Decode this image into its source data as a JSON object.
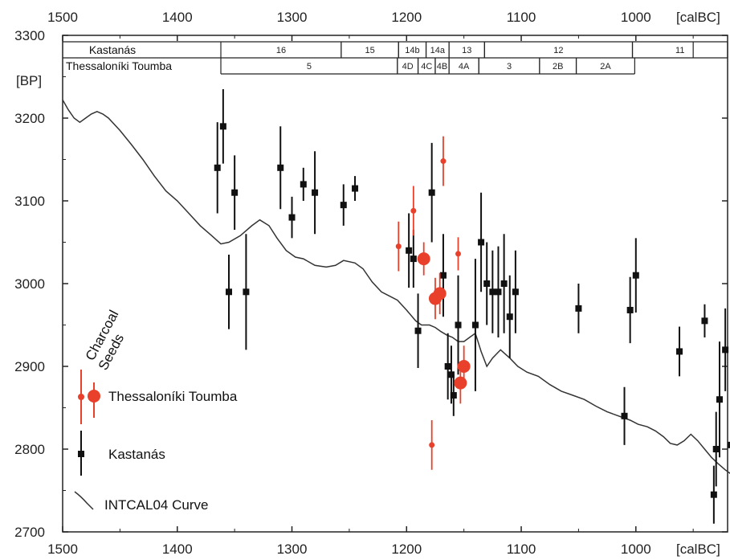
{
  "chart_data": {
    "type": "scatter",
    "x_axis": {
      "range": [
        1500,
        920
      ],
      "ticks": [
        1500,
        1400,
        1300,
        1200,
        1100,
        1000
      ],
      "tick_labels": [
        "1500",
        "1400",
        "1300",
        "1200",
        "1100",
        "1000"
      ],
      "unit_label": "[calBC]"
    },
    "y_axis": {
      "range": [
        2700,
        3300
      ],
      "ticks": [
        2700,
        2800,
        2900,
        3000,
        3100,
        3200,
        3300
      ],
      "tick_labels": [
        "2700",
        "2800",
        "2900",
        "3000",
        "3100",
        "3200",
        "3300"
      ],
      "unit_label": "[BP]"
    },
    "phase_bars": [
      {
        "site": "Kastanás",
        "phases": [
          {
            "label": "16",
            "from": 1362,
            "to": 1257
          },
          {
            "label": "15",
            "from": 1257,
            "to": 1207
          },
          {
            "label": "14b",
            "from": 1207,
            "to": 1183
          },
          {
            "label": "14a",
            "from": 1183,
            "to": 1163
          },
          {
            "label": "13",
            "from": 1163,
            "to": 1132
          },
          {
            "label": "12",
            "from": 1132,
            "to": 1003
          },
          {
            "label": "11",
            "from": 1003,
            "to": 920
          }
        ]
      },
      {
        "site": "Thessaloníki Toumba",
        "phases": [
          {
            "label": "5",
            "from": 1362,
            "to": 1208
          },
          {
            "label": "4D",
            "from": 1208,
            "to": 1190
          },
          {
            "label": "4C",
            "from": 1190,
            "to": 1175
          },
          {
            "label": "4B",
            "from": 1175,
            "to": 1163
          },
          {
            "label": "4A",
            "from": 1163,
            "to": 1137
          },
          {
            "label": "3",
            "from": 1137,
            "to": 1084
          },
          {
            "label": "2B",
            "from": 1084,
            "to": 1052
          },
          {
            "label": "2A",
            "from": 1052,
            "to": 1001
          }
        ]
      }
    ],
    "series": [
      {
        "name": "Kastanás",
        "color": "#111111",
        "points": [
          {
            "x": 1365,
            "y": 3140,
            "err": 55
          },
          {
            "x": 1360,
            "y": 3190,
            "err": 45
          },
          {
            "x": 1355,
            "y": 2990,
            "err": 45
          },
          {
            "x": 1350,
            "y": 3110,
            "err": 45
          },
          {
            "x": 1340,
            "y": 2990,
            "err": 70
          },
          {
            "x": 1310,
            "y": 3140,
            "err": 50
          },
          {
            "x": 1300,
            "y": 3080,
            "err": 25
          },
          {
            "x": 1290,
            "y": 3120,
            "err": 20
          },
          {
            "x": 1280,
            "y": 3110,
            "err": 50
          },
          {
            "x": 1255,
            "y": 3095,
            "err": 25
          },
          {
            "x": 1245,
            "y": 3115,
            "err": 15
          },
          {
            "x": 1198,
            "y": 3040,
            "err": 45
          },
          {
            "x": 1194,
            "y": 3030,
            "err": 35
          },
          {
            "x": 1190,
            "y": 2943,
            "err": 45
          },
          {
            "x": 1178,
            "y": 3110,
            "err": 60
          },
          {
            "x": 1168,
            "y": 3010,
            "err": 50
          },
          {
            "x": 1164,
            "y": 2900,
            "err": 40
          },
          {
            "x": 1161,
            "y": 2890,
            "err": 35
          },
          {
            "x": 1159,
            "y": 2865,
            "err": 25
          },
          {
            "x": 1155,
            "y": 2950,
            "err": 60
          },
          {
            "x": 1140,
            "y": 2950,
            "err": 80
          },
          {
            "x": 1135,
            "y": 3050,
            "err": 60
          },
          {
            "x": 1130,
            "y": 3000,
            "err": 50
          },
          {
            "x": 1125,
            "y": 2990,
            "err": 50
          },
          {
            "x": 1120,
            "y": 2990,
            "err": 55
          },
          {
            "x": 1115,
            "y": 3000,
            "err": 60
          },
          {
            "x": 1110,
            "y": 2960,
            "err": 50
          },
          {
            "x": 1105,
            "y": 2990,
            "err": 50
          },
          {
            "x": 1050,
            "y": 2970,
            "err": 30
          },
          {
            "x": 1010,
            "y": 2840,
            "err": 35
          },
          {
            "x": 1005,
            "y": 2968,
            "err": 40
          },
          {
            "x": 1000,
            "y": 3010,
            "err": 45
          },
          {
            "x": 962,
            "y": 2918,
            "err": 30
          },
          {
            "x": 940,
            "y": 2955,
            "err": 20
          },
          {
            "x": 932,
            "y": 2745,
            "err": 35
          },
          {
            "x": 930,
            "y": 2800,
            "err": 45
          },
          {
            "x": 927,
            "y": 2860,
            "err": 70
          },
          {
            "x": 922,
            "y": 2920,
            "err": 50
          },
          {
            "x": 917,
            "y": 2805,
            "err": 40
          },
          {
            "x": 910,
            "y": 2780,
            "err": 40
          }
        ]
      },
      {
        "name": "Thessaloníki Toumba",
        "color": "#e8402a",
        "points": [
          {
            "x": 1207,
            "y": 3045,
            "err": 30,
            "sample": "Seeds"
          },
          {
            "x": 1194,
            "y": 3088,
            "err": 30,
            "sample": "Seeds"
          },
          {
            "x": 1185,
            "y": 3030,
            "err": 20,
            "sample": "Charcoal"
          },
          {
            "x": 1178,
            "y": 2805,
            "err": 30,
            "sample": "Seeds"
          },
          {
            "x": 1175,
            "y": 2982,
            "err": 25,
            "sample": "Charcoal"
          },
          {
            "x": 1171,
            "y": 2988,
            "err": 25,
            "sample": "Charcoal"
          },
          {
            "x": 1168,
            "y": 3148,
            "err": 30,
            "sample": "Seeds"
          },
          {
            "x": 1155,
            "y": 3036,
            "err": 20,
            "sample": "Seeds"
          },
          {
            "x": 1153,
            "y": 2880,
            "err": 25,
            "sample": "Charcoal"
          },
          {
            "x": 1150,
            "y": 2900,
            "err": 25,
            "sample": "Charcoal"
          }
        ]
      },
      {
        "name": "INTCAL04 Curve",
        "type": "line",
        "color": "#333333",
        "points": [
          [
            1500,
            3222
          ],
          [
            1495,
            3210
          ],
          [
            1490,
            3200
          ],
          [
            1485,
            3195
          ],
          [
            1480,
            3200
          ],
          [
            1475,
            3205
          ],
          [
            1470,
            3208
          ],
          [
            1465,
            3205
          ],
          [
            1460,
            3200
          ],
          [
            1450,
            3185
          ],
          [
            1440,
            3168
          ],
          [
            1430,
            3150
          ],
          [
            1420,
            3130
          ],
          [
            1410,
            3112
          ],
          [
            1400,
            3100
          ],
          [
            1390,
            3085
          ],
          [
            1380,
            3070
          ],
          [
            1370,
            3058
          ],
          [
            1362,
            3048
          ],
          [
            1355,
            3050
          ],
          [
            1345,
            3058
          ],
          [
            1335,
            3070
          ],
          [
            1328,
            3077
          ],
          [
            1320,
            3070
          ],
          [
            1313,
            3055
          ],
          [
            1305,
            3040
          ],
          [
            1297,
            3032
          ],
          [
            1290,
            3030
          ],
          [
            1280,
            3022
          ],
          [
            1270,
            3020
          ],
          [
            1262,
            3022
          ],
          [
            1255,
            3028
          ],
          [
            1245,
            3025
          ],
          [
            1238,
            3018
          ],
          [
            1230,
            3002
          ],
          [
            1222,
            2990
          ],
          [
            1215,
            2985
          ],
          [
            1208,
            2980
          ],
          [
            1200,
            2968
          ],
          [
            1192,
            2955
          ],
          [
            1187,
            2950
          ],
          [
            1180,
            2950
          ],
          [
            1175,
            2947
          ],
          [
            1170,
            2942
          ],
          [
            1165,
            2938
          ],
          [
            1160,
            2935
          ],
          [
            1155,
            2930
          ],
          [
            1150,
            2930
          ],
          [
            1145,
            2935
          ],
          [
            1140,
            2940
          ],
          [
            1135,
            2918
          ],
          [
            1130,
            2900
          ],
          [
            1125,
            2910
          ],
          [
            1118,
            2920
          ],
          [
            1110,
            2910
          ],
          [
            1103,
            2900
          ],
          [
            1095,
            2893
          ],
          [
            1085,
            2888
          ],
          [
            1075,
            2878
          ],
          [
            1065,
            2870
          ],
          [
            1055,
            2865
          ],
          [
            1045,
            2860
          ],
          [
            1035,
            2852
          ],
          [
            1025,
            2845
          ],
          [
            1015,
            2840
          ],
          [
            1005,
            2835
          ],
          [
            998,
            2830
          ],
          [
            990,
            2827
          ],
          [
            983,
            2822
          ],
          [
            976,
            2815
          ],
          [
            970,
            2807
          ],
          [
            964,
            2805
          ],
          [
            958,
            2810
          ],
          [
            952,
            2818
          ],
          [
            946,
            2810
          ],
          [
            940,
            2800
          ],
          [
            934,
            2790
          ],
          [
            928,
            2782
          ],
          [
            922,
            2775
          ],
          [
            915,
            2768
          ],
          [
            908,
            2762
          ],
          [
            900,
            2755
          ]
        ]
      }
    ],
    "legend": {
      "placement": "bottom-left",
      "sample_types": [
        "Charcoal",
        "Seeds"
      ],
      "entries": [
        "Thessaloníki Toumba",
        "Kastanás",
        "INTCAL04 Curve"
      ]
    },
    "grid": false
  }
}
